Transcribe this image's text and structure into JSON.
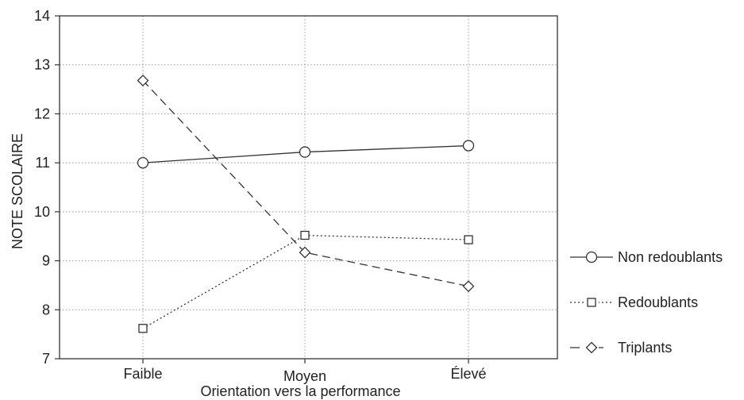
{
  "chart_data": {
    "type": "line",
    "title": "",
    "xlabel": "Orientation vers la performance",
    "ylabel": "NOTE SCOLAIRE",
    "categories": [
      "Faible",
      "Moyen",
      "Élevé"
    ],
    "ylim": [
      7,
      14
    ],
    "yticks": [
      "7",
      "8",
      "9",
      "10",
      "11",
      "12",
      "13",
      "14"
    ],
    "grid": "dotted",
    "legend_position": "right",
    "series": [
      {
        "name": "Non redoublants",
        "values": [
          11.0,
          11.22,
          11.35
        ],
        "marker": "circle",
        "line_style": "solid"
      },
      {
        "name": "Redoublants",
        "values": [
          7.62,
          9.52,
          9.43
        ],
        "marker": "square",
        "line_style": "dotted"
      },
      {
        "name": "Triplants",
        "values": [
          12.68,
          9.17,
          8.48
        ],
        "marker": "diamond",
        "line_style": "dashed"
      }
    ]
  }
}
